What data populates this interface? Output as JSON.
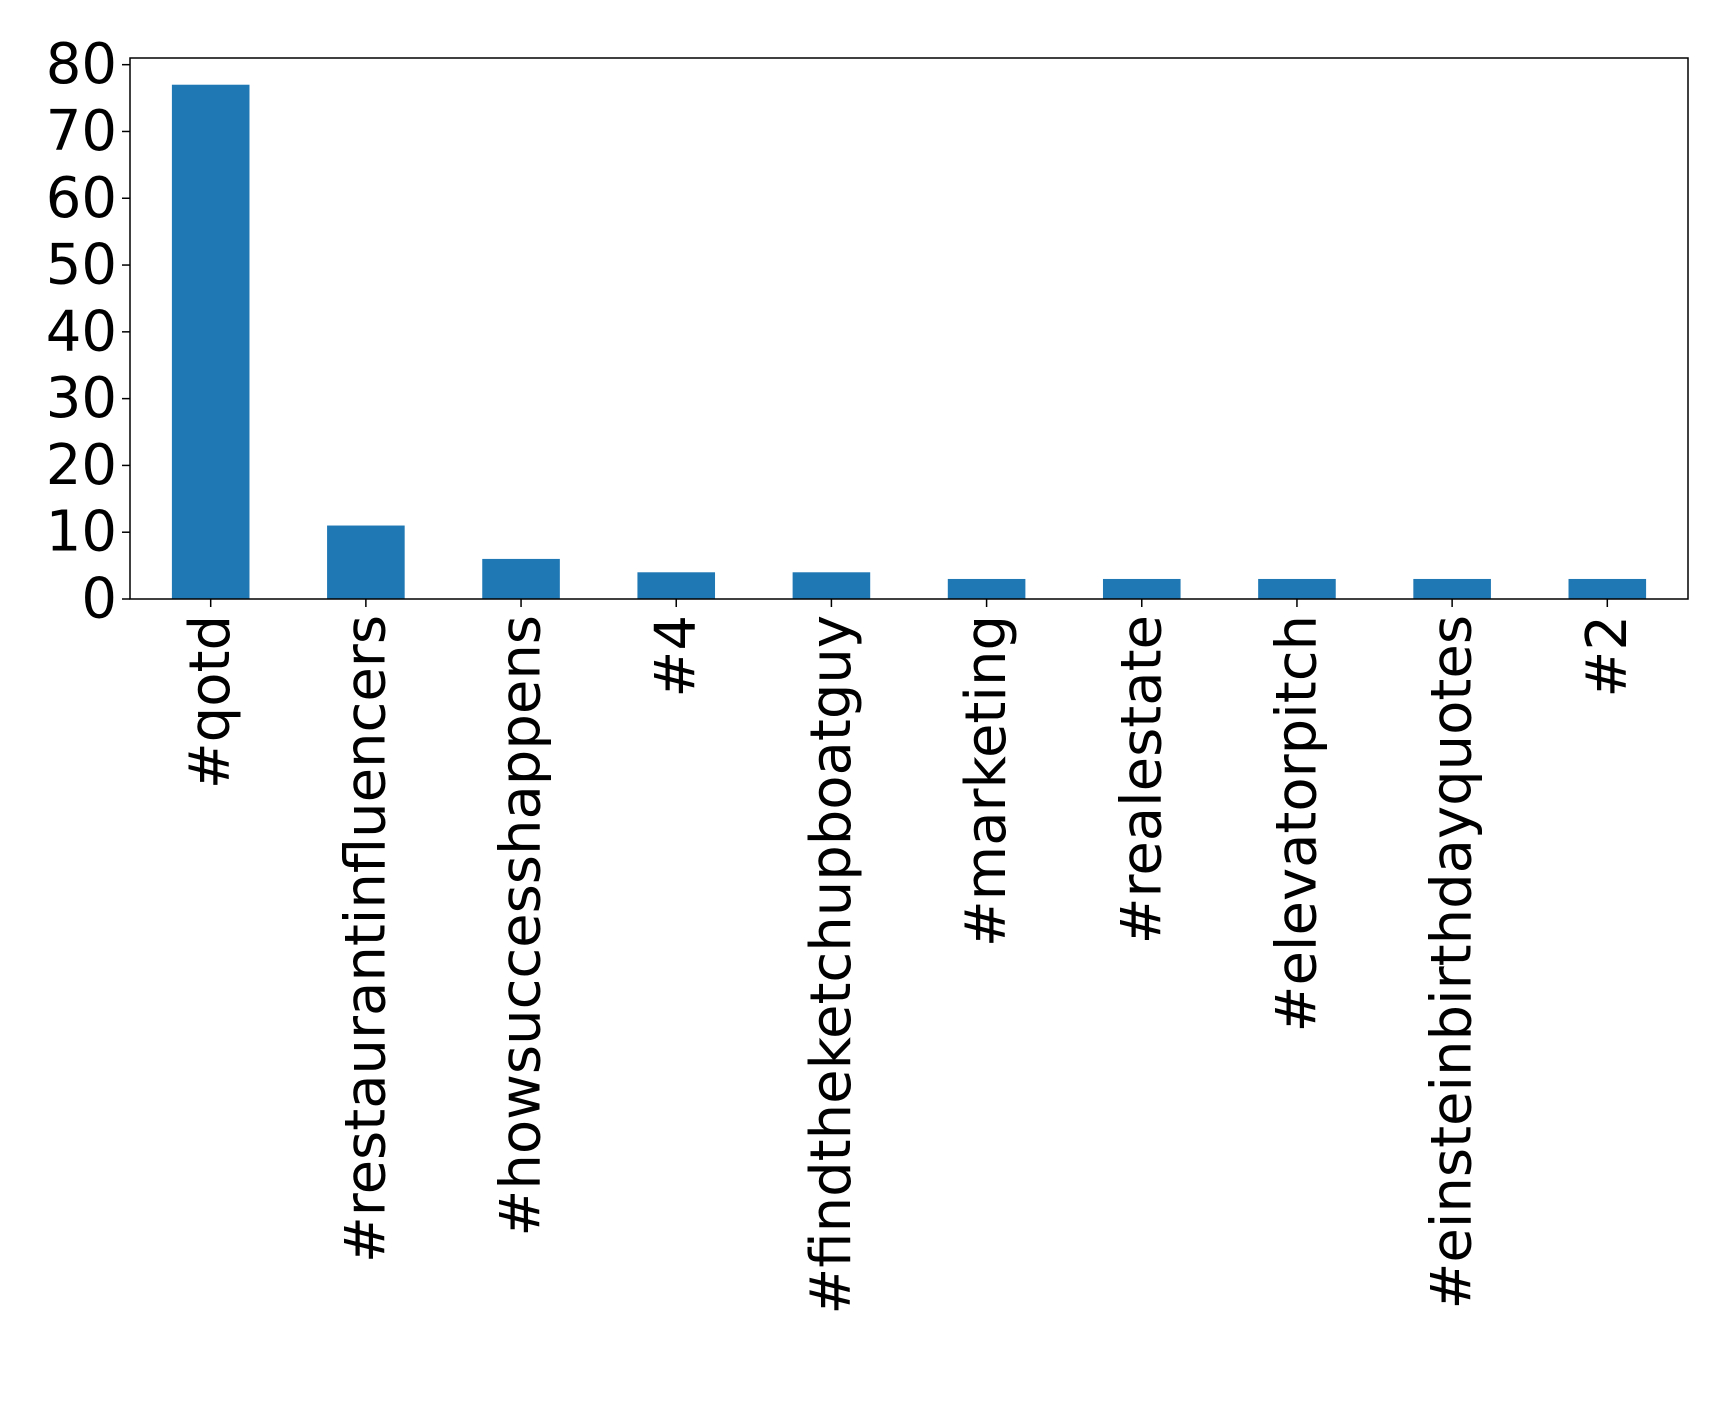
{
  "chart_data": {
    "type": "bar",
    "title": "",
    "xlabel": "",
    "ylabel": "",
    "categories": [
      "#qotd",
      "#restaurantinfluencers",
      "#howsuccesshappens",
      "#4",
      "#findtheketchupboatguy",
      "#marketing",
      "#realestate",
      "#elevatorpitch",
      "#einsteinbirthdayquotes",
      "#2"
    ],
    "values": [
      77,
      11,
      6,
      4,
      4,
      3,
      3,
      3,
      3,
      3
    ],
    "ylim": [
      0,
      81
    ],
    "yticks": [
      "0",
      "10",
      "20",
      "30",
      "40",
      "50",
      "60",
      "70",
      "80"
    ],
    "bar_color": "#1f77b4",
    "grid": false,
    "legend": "none"
  }
}
